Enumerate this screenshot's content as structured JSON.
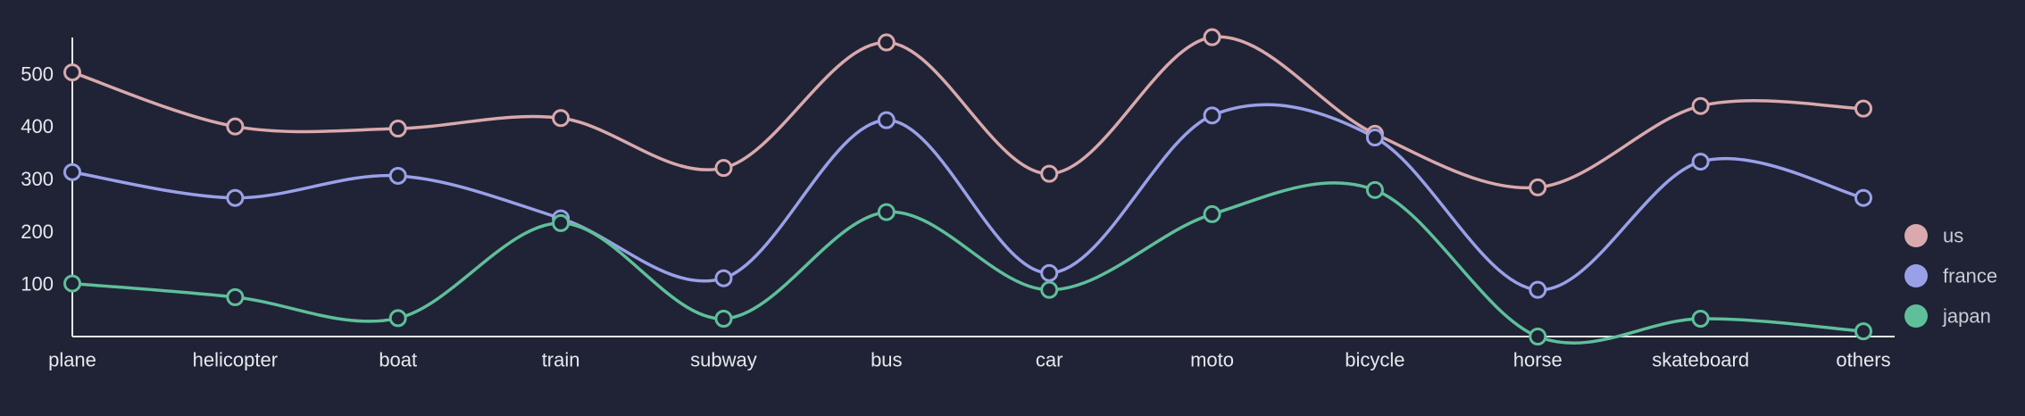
{
  "chart_data": {
    "type": "line",
    "curve": "smooth",
    "categories": [
      "plane",
      "helicopter",
      "boat",
      "train",
      "subway",
      "bus",
      "car",
      "moto",
      "bicycle",
      "horse",
      "skateboard",
      "others"
    ],
    "series": [
      {
        "name": "us",
        "color": "#d9a9ad",
        "values": [
          503,
          400,
          396,
          416,
          321,
          560,
          310,
          570,
          386,
          284,
          439,
          434
        ]
      },
      {
        "name": "france",
        "color": "#9aa0e8",
        "values": [
          313,
          264,
          306,
          225,
          111,
          412,
          121,
          421,
          379,
          89,
          333,
          264
        ]
      },
      {
        "name": "japan",
        "color": "#5fbf9a",
        "values": [
          101,
          75,
          35,
          216,
          34,
          237,
          89,
          233,
          279,
          0,
          34,
          10
        ]
      }
    ],
    "yticks": [
      100,
      200,
      300,
      400,
      500
    ],
    "ylim": [
      0,
      570
    ],
    "title": "",
    "xlabel": "",
    "ylabel": "",
    "grid": false,
    "legend_position": "right"
  }
}
